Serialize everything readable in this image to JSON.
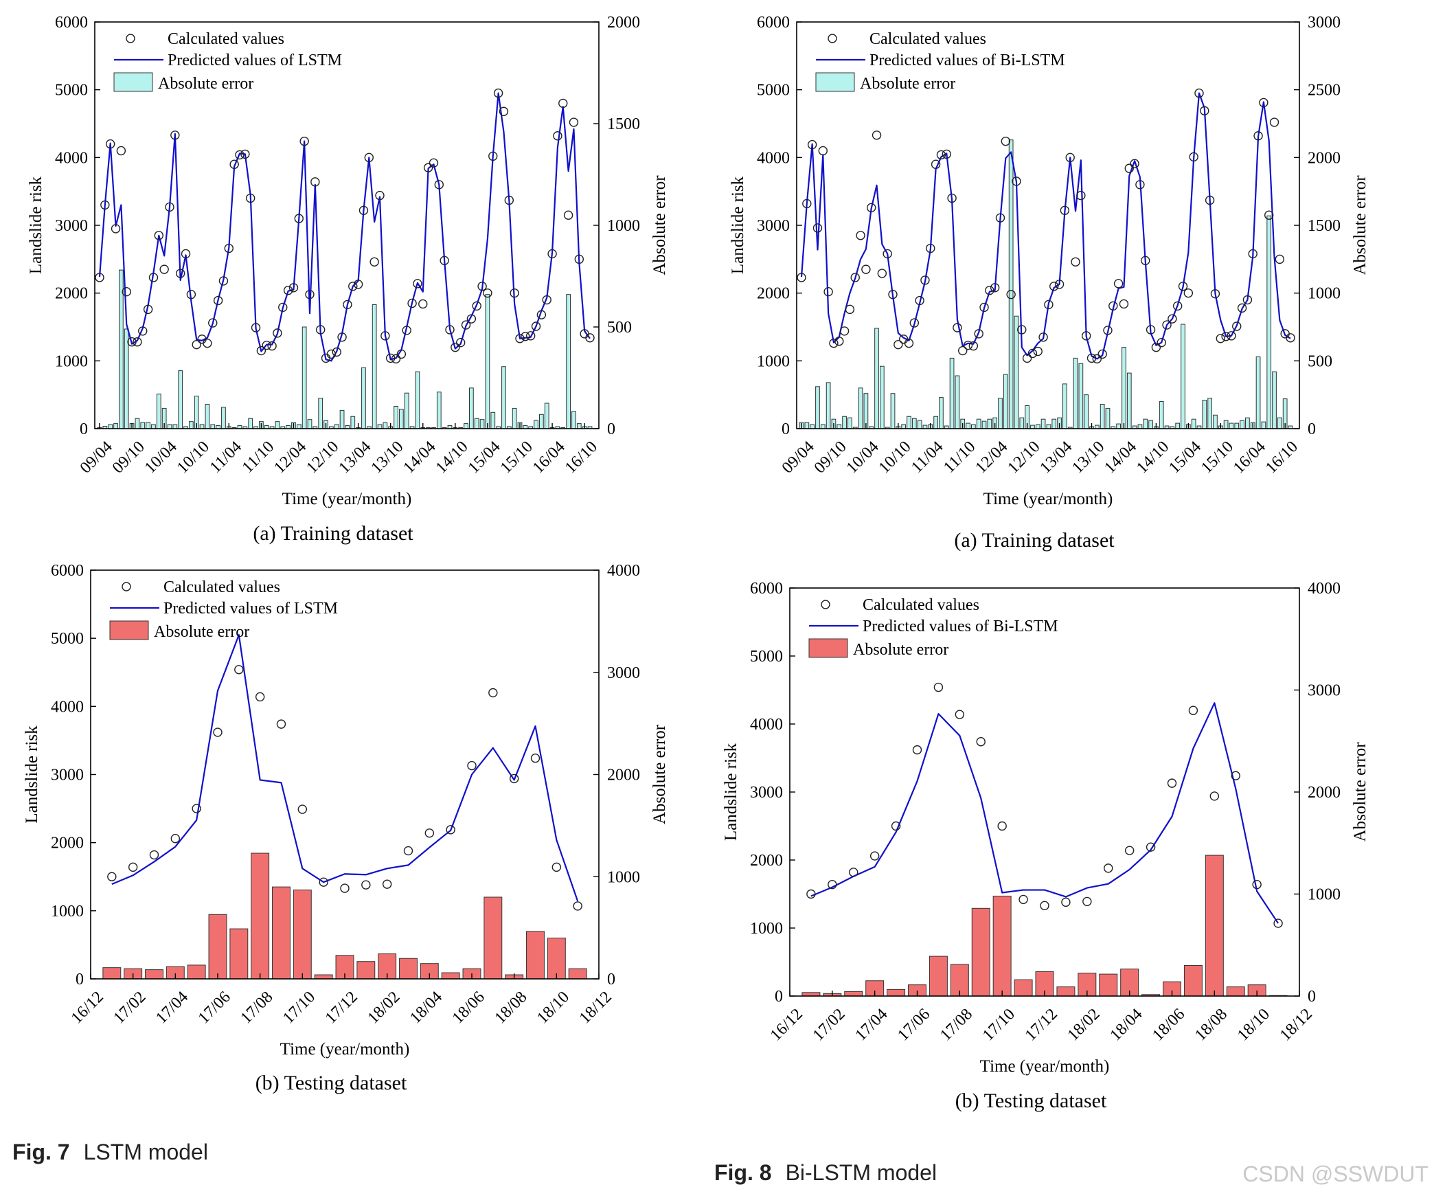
{
  "figure_captions": [
    {
      "label": "Fig. 7",
      "text": "LSTM model"
    },
    {
      "label": "Fig. 8",
      "text": "Bi-LSTM model"
    }
  ],
  "watermark": "CSDN @SSWDUT",
  "colors": {
    "line": "#1010cc",
    "bar_train": "#b7f3ee",
    "bar_test": "#f07070",
    "bar_stroke": "#333333",
    "circle": "#222222"
  },
  "chart_data": [
    {
      "type": "line",
      "subcaption": "(a)  Training dataset",
      "xlabel": "Time (year/month)",
      "ylabel": "Landslide risk",
      "y2label": "Absolute error",
      "ylim": [
        0,
        6000
      ],
      "yticks": [
        0,
        1000,
        2000,
        3000,
        4000,
        5000,
        6000
      ],
      "y2lim": [
        0,
        2000
      ],
      "y2ticks": [
        0,
        500,
        1000,
        1500,
        2000
      ],
      "xticks": [
        "09/04",
        "09/10",
        "10/04",
        "10/10",
        "11/04",
        "11/10",
        "12/04",
        "12/10",
        "13/04",
        "13/10",
        "14/04",
        "14/10",
        "15/04",
        "15/10",
        "16/04",
        "16/10"
      ],
      "legend": [
        "Calculated values",
        "Predicted values of LSTM",
        "Absolute error"
      ],
      "legend_position": "top-left",
      "bar_color_key": "bar_train",
      "series": [
        {
          "name": "Calculated values",
          "values": [
            2230,
            3300,
            4200,
            2950,
            4100,
            2020,
            1280,
            1280,
            1440,
            1760,
            2230,
            2850,
            2350,
            3270,
            4330,
            2290,
            2580,
            1980,
            1240,
            1320,
            1260,
            1560,
            1890,
            2180,
            2660,
            3900,
            4040,
            4050,
            3400,
            1490,
            1150,
            1230,
            1220,
            1410,
            1790,
            2040,
            2080,
            3100,
            4240,
            1980,
            3640,
            1460,
            1040,
            1100,
            1130,
            1350,
            1830,
            2100,
            2130,
            3220,
            4000,
            2460,
            3440,
            1370,
            1040,
            1030,
            1100,
            1450,
            1850,
            2140,
            1840,
            3850,
            3920,
            3600,
            2480,
            1460,
            1200,
            1270,
            1530,
            1620,
            1810,
            2100,
            2000,
            4020,
            4950,
            4680,
            3370,
            2000,
            1330,
            1360,
            1370,
            1510,
            1680,
            1900,
            2580,
            4320,
            4800,
            3150,
            4520,
            2500,
            1400,
            1340
          ]
        },
        {
          "name": "Predicted values of LSTM",
          "values": [
            2240,
            3300,
            4210,
            2990,
            3300,
            1540,
            1250,
            1300,
            1480,
            1820,
            2300,
            2850,
            2550,
            3270,
            4350,
            2190,
            2560,
            1880,
            1310,
            1300,
            1340,
            1550,
            1900,
            2200,
            2670,
            3870,
            4060,
            4050,
            3450,
            1480,
            1140,
            1240,
            1240,
            1400,
            1780,
            2030,
            2050,
            3100,
            4240,
            1700,
            3600,
            1410,
            1020,
            1000,
            1140,
            1400,
            1830,
            2100,
            2180,
            3220,
            4000,
            3050,
            3420,
            1380,
            1020,
            1040,
            1160,
            1500,
            1860,
            2150,
            2020,
            3840,
            3900,
            3600,
            2480,
            1470,
            1180,
            1250,
            1520,
            1660,
            1830,
            2060,
            2800,
            4020,
            4950,
            4380,
            3370,
            1840,
            1330,
            1340,
            1350,
            1510,
            1740,
            1930,
            2600,
            4150,
            4750,
            3800,
            4420,
            2450,
            1440,
            1330
          ]
        },
        {
          "name": "Absolute error",
          "values": [
            5,
            12,
            20,
            25,
            780,
            490,
            25,
            50,
            30,
            30,
            20,
            170,
            100,
            20,
            20,
            285,
            10,
            35,
            160,
            20,
            120,
            20,
            15,
            105,
            10,
            5,
            15,
            10,
            50,
            10,
            35,
            15,
            10,
            35,
            10,
            15,
            30,
            20,
            500,
            45,
            10,
            150,
            40,
            10,
            20,
            90,
            15,
            60,
            5,
            300,
            10,
            610,
            20,
            30,
            10,
            110,
            95,
            175,
            10,
            280,
            5,
            5,
            5,
            180,
            5,
            15,
            5,
            5,
            25,
            200,
            50,
            45,
            660,
            80,
            10,
            305,
            10,
            100,
            30,
            15,
            10,
            40,
            70,
            125,
            5,
            10,
            5,
            660,
            85,
            25,
            10,
            10
          ]
        }
      ]
    },
    {
      "type": "line",
      "subcaption": "(a)  Training dataset",
      "xlabel": "Time (year/month)",
      "ylabel": "Landslide risk",
      "y2label": "Absolute error",
      "ylim": [
        0,
        6000
      ],
      "yticks": [
        0,
        1000,
        2000,
        3000,
        4000,
        5000,
        6000
      ],
      "y2lim": [
        0,
        3000
      ],
      "y2ticks": [
        0,
        500,
        1000,
        1500,
        2000,
        2500,
        3000
      ],
      "xticks": [
        "09/04",
        "09/10",
        "10/04",
        "10/10",
        "11/04",
        "11/10",
        "12/04",
        "12/10",
        "13/04",
        "13/10",
        "14/04",
        "14/10",
        "15/04",
        "15/10",
        "16/04",
        "16/10"
      ],
      "legend": [
        "Calculated values",
        "Predicted values of Bi-LSTM",
        "Absolute error"
      ],
      "legend_position": "top-left",
      "bar_color_key": "bar_train",
      "series": [
        {
          "name": "Calculated values",
          "values": [
            2230,
            3320,
            4190,
            2960,
            4100,
            2020,
            1260,
            1290,
            1440,
            1760,
            2230,
            2850,
            2350,
            3260,
            4330,
            2290,
            2580,
            1980,
            1240,
            1320,
            1260,
            1560,
            1890,
            2190,
            2660,
            3900,
            4040,
            4050,
            3400,
            1490,
            1150,
            1230,
            1220,
            1400,
            1790,
            2040,
            2080,
            3110,
            4240,
            1980,
            3650,
            1460,
            1040,
            1110,
            1140,
            1350,
            1830,
            2100,
            2130,
            3220,
            4000,
            2460,
            3440,
            1370,
            1040,
            1030,
            1100,
            1450,
            1810,
            2140,
            1840,
            3840,
            3910,
            3600,
            2480,
            1460,
            1200,
            1270,
            1530,
            1620,
            1810,
            2100,
            2000,
            4010,
            4950,
            4690,
            3370,
            1990,
            1330,
            1360,
            1370,
            1510,
            1780,
            1900,
            2580,
            4320,
            4810,
            3150,
            4520,
            2500,
            1400,
            1340
          ]
        },
        {
          "name": "Predicted values of Bi-LSTM",
          "values": [
            2240,
            3320,
            4200,
            2640,
            4040,
            1700,
            1270,
            1350,
            1700,
            2000,
            2220,
            2500,
            2650,
            3250,
            3590,
            2720,
            2580,
            1960,
            1410,
            1340,
            1300,
            1540,
            1850,
            2170,
            2640,
            3830,
            4010,
            4060,
            3380,
            1610,
            1220,
            1260,
            1250,
            1420,
            1780,
            2020,
            2040,
            3100,
            3990,
            4080,
            3640,
            1200,
            1080,
            1150,
            1260,
            1330,
            1850,
            2080,
            2130,
            3200,
            4000,
            3210,
            3960,
            1360,
            1070,
            1030,
            1080,
            1420,
            1770,
            2070,
            2090,
            3730,
            3950,
            3710,
            2470,
            1410,
            1230,
            1270,
            1530,
            1620,
            1820,
            2090,
            2600,
            3990,
            4950,
            4730,
            3380,
            1990,
            1600,
            1360,
            1370,
            1520,
            1770,
            1900,
            2540,
            4310,
            4820,
            4250,
            2530,
            1600,
            1380,
            1330
          ]
        },
        {
          "name": "Absolute error",
          "values": [
            45,
            45,
            30,
            310,
            30,
            340,
            70,
            30,
            90,
            80,
            10,
            300,
            260,
            15,
            740,
            460,
            10,
            260,
            15,
            30,
            90,
            75,
            60,
            25,
            30,
            90,
            230,
            20,
            520,
            390,
            70,
            40,
            30,
            70,
            55,
            70,
            80,
            225,
            400,
            2130,
            830,
            80,
            170,
            25,
            30,
            70,
            30,
            70,
            80,
            330,
            10,
            520,
            480,
            250,
            15,
            25,
            180,
            150,
            15,
            35,
            600,
            410,
            20,
            30,
            70,
            60,
            15,
            200,
            20,
            15,
            40,
            770,
            30,
            70,
            20,
            210,
            225,
            100,
            20,
            60,
            40,
            40,
            60,
            80,
            45,
            530,
            50,
            1570,
            420,
            80,
            220,
            20
          ]
        }
      ]
    },
    {
      "type": "line",
      "subcaption": "(b)  Testing dataset",
      "xlabel": "Time (year/month)",
      "ylabel": "Landslide risk",
      "y2label": "Absolute error",
      "ylim": [
        0,
        6000
      ],
      "yticks": [
        0,
        1000,
        2000,
        3000,
        4000,
        5000,
        6000
      ],
      "y2lim": [
        0,
        4000
      ],
      "y2ticks": [
        0,
        1000,
        2000,
        3000,
        4000
      ],
      "xticks": [
        "16/12",
        "17/02",
        "17/04",
        "17/06",
        "17/08",
        "17/10",
        "17/12",
        "18/02",
        "18/04",
        "18/06",
        "18/08",
        "18/10",
        "18/12"
      ],
      "legend": [
        "Calculated values",
        "Predicted values of LSTM",
        "Absolute error"
      ],
      "legend_position": "top-left",
      "bar_color_key": "bar_test",
      "series": [
        {
          "name": "Calculated values",
          "values": [
            1500,
            1640,
            1820,
            2060,
            2500,
            3620,
            4540,
            4140,
            3740,
            2490,
            1420,
            1330,
            1380,
            1390,
            1880,
            2140,
            2190,
            3130,
            4200,
            2940,
            3240,
            1640,
            1070
          ]
        },
        {
          "name": "Predicted values of LSTM",
          "values": [
            1390,
            1520,
            1720,
            1940,
            2330,
            4230,
            5050,
            2920,
            2880,
            1620,
            1420,
            1540,
            1530,
            1620,
            1670,
            1930,
            2180,
            3000,
            3390,
            2920,
            3710,
            2040,
            1140
          ]
        },
        {
          "name": "Absolute error",
          "values": [
            110,
            100,
            90,
            120,
            135,
            630,
            490,
            1230,
            900,
            870,
            40,
            230,
            170,
            245,
            200,
            150,
            60,
            100,
            800,
            40,
            465,
            400,
            100
          ]
        }
      ]
    },
    {
      "type": "line",
      "subcaption": "(b)  Testing dataset",
      "xlabel": "Time (year/month)",
      "ylabel": "Landslide risk",
      "y2label": "Absolute error",
      "ylim": [
        0,
        6000
      ],
      "yticks": [
        0,
        1000,
        2000,
        3000,
        4000,
        5000,
        6000
      ],
      "y2lim": [
        0,
        4000
      ],
      "y2ticks": [
        0,
        1000,
        2000,
        3000,
        4000
      ],
      "xticks": [
        "16/12",
        "17/02",
        "17/04",
        "17/06",
        "17/08",
        "17/10",
        "17/12",
        "18/02",
        "18/04",
        "18/06",
        "18/08",
        "18/10",
        "18/12"
      ],
      "legend": [
        "Calculated values",
        "Predicted values of Bi-LSTM",
        "Absolute error"
      ],
      "legend_position": "top-left",
      "bar_color_key": "bar_test",
      "series": [
        {
          "name": "Calculated values",
          "values": [
            1500,
            1640,
            1820,
            2060,
            2500,
            3620,
            4540,
            4140,
            3740,
            2500,
            1420,
            1330,
            1380,
            1390,
            1880,
            2140,
            2190,
            3130,
            4200,
            2940,
            3240,
            1640,
            1070
          ]
        },
        {
          "name": "Predicted values of Bi-LSTM",
          "values": [
            1470,
            1600,
            1760,
            1900,
            2410,
            3160,
            4150,
            3830,
            2910,
            1520,
            1560,
            1560,
            1460,
            1590,
            1650,
            1860,
            2150,
            2640,
            3640,
            4310,
            3050,
            1540,
            1070
          ]
        },
        {
          "name": "Absolute error",
          "values": [
            35,
            25,
            45,
            150,
            65,
            110,
            390,
            310,
            860,
            980,
            160,
            240,
            90,
            225,
            215,
            265,
            15,
            140,
            300,
            1380,
            90,
            110,
            5
          ]
        }
      ]
    }
  ]
}
